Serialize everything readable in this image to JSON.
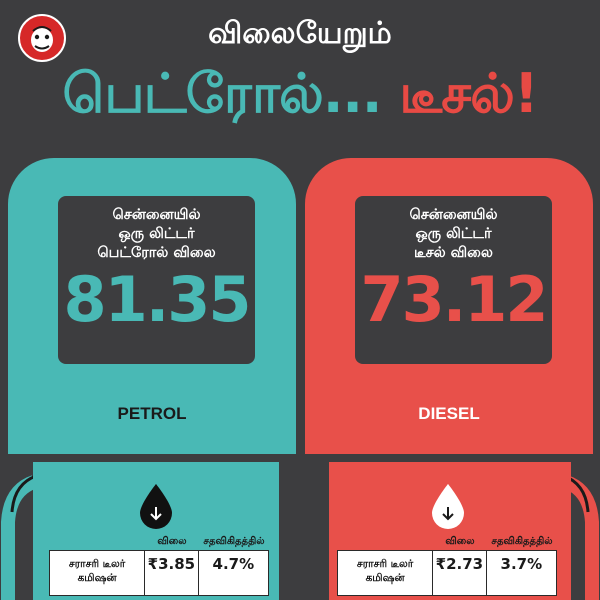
{
  "header": {
    "title": "விலையேறும்",
    "headline_petrol": "பெட்ரோல்...",
    "headline_diesel": "டீசல்!"
  },
  "petrol": {
    "caption_line1": "சென்னையில்",
    "caption_line2": "ஒரு லிட்டர்",
    "caption_line3": "பெட்ரோல் விலை",
    "price": "81.35",
    "label": "PETROL",
    "table": {
      "col_price": "விலை",
      "col_percent": "சதவிகிதத்தில்",
      "row_name_line1": "சராசரி டீலர்",
      "row_name_line2": "கமிஷன்",
      "row_value": "₹3.85",
      "row_percent": "4.7%"
    }
  },
  "diesel": {
    "caption_line1": "சென்னையில்",
    "caption_line2": "ஒரு லிட்டர்",
    "caption_line3": "டீசல் விலை",
    "price": "73.12",
    "label": "DIESEL",
    "table": {
      "col_price": "விலை",
      "col_percent": "சதவிகிதத்தில்",
      "row_name_line1": "சராசரி டீலர்",
      "row_name_line2": "கமிஷன்",
      "row_value": "₹2.73",
      "row_percent": "3.7%"
    }
  },
  "colors": {
    "background": "#3d3d3f",
    "petrol_accent": "#49b9b5",
    "diesel_accent": "#e8504a",
    "logo_red": "#d62828"
  },
  "icons": {
    "logo": "cartoon-face-logo",
    "petrol_drop": "oil-drop-down-arrow-icon",
    "diesel_drop": "water-drop-down-arrow-icon"
  }
}
